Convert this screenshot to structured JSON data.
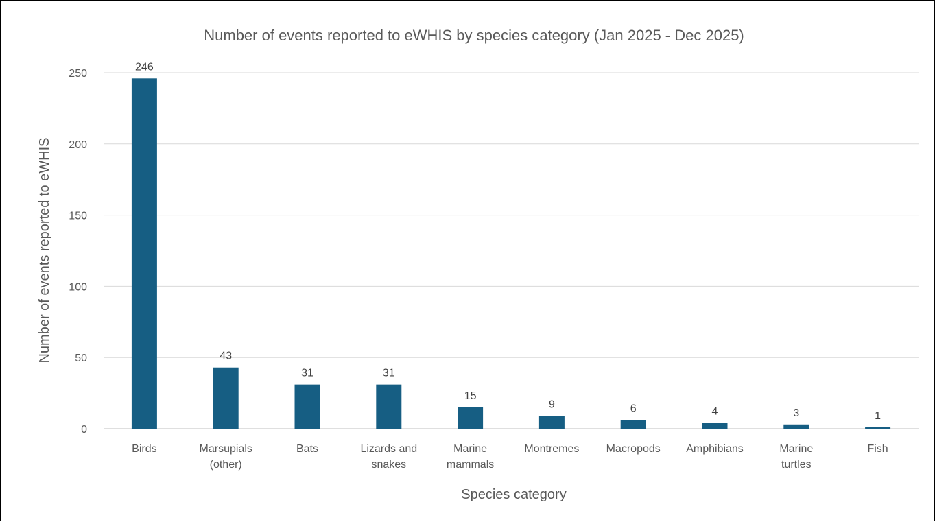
{
  "chart_data": {
    "type": "bar",
    "title": "Number of events reported to eWHIS by species category (Jan 2025 - Dec 2025)",
    "xlabel": "Species category",
    "ylabel": "Number of events reported to eWHIS",
    "categories": [
      [
        "Birds"
      ],
      [
        "Marsupials",
        "(other)"
      ],
      [
        "Bats"
      ],
      [
        "Lizards and",
        "snakes"
      ],
      [
        "Marine",
        "mammals"
      ],
      [
        "Montremes"
      ],
      [
        "Macropods"
      ],
      [
        "Amphibians"
      ],
      [
        "Marine",
        "turtles"
      ],
      [
        "Fish"
      ]
    ],
    "values": [
      246,
      43,
      31,
      31,
      15,
      9,
      6,
      4,
      3,
      1
    ],
    "ylim": [
      0,
      250
    ],
    "yticks": [
      "0",
      "50",
      "100",
      "150",
      "200",
      "250"
    ],
    "grid": true,
    "legend": "none",
    "bar_color": "#165e83"
  }
}
